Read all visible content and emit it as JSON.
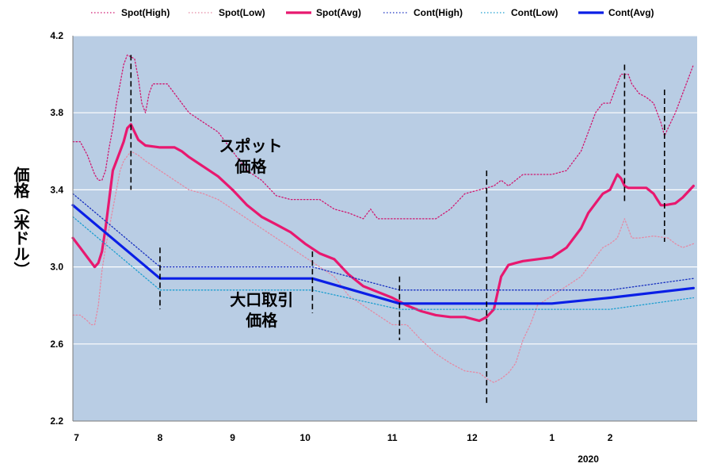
{
  "chart_data": {
    "type": "line",
    "title": "",
    "ylabel": "価格（米ドル）",
    "ylim": [
      2.2,
      4.2
    ],
    "yticks": [
      "2.2",
      "2.6",
      "3.0",
      "3.4",
      "3.8",
      "4.2"
    ],
    "yticks_values": [
      2.2,
      2.6,
      3.0,
      3.4,
      3.8,
      4.2
    ],
    "xlim": [
      0,
      8.6
    ],
    "x_tick_labels": [
      {
        "label": "7",
        "x": 0.05
      },
      {
        "label": "8",
        "x": 1.2
      },
      {
        "label": "9",
        "x": 2.2
      },
      {
        "label": "10",
        "x": 3.2
      },
      {
        "label": "11",
        "x": 4.4
      },
      {
        "label": "12",
        "x": 5.5
      },
      {
        "label": "1",
        "x": 6.6
      },
      {
        "label": "2",
        "x": 7.4
      }
    ],
    "year_label": {
      "text": "2020",
      "x": 7.1
    },
    "legend_position": "top",
    "background_color": "#b9cde4",
    "grid": {
      "horizontal": true,
      "vertical": false
    },
    "annotations": [
      {
        "text_lines": [
          "スポット",
          "価格"
        ],
        "x": 2.45,
        "y": 3.6
      },
      {
        "text_lines": [
          "大口取引",
          "価格"
        ],
        "x": 2.6,
        "y": 2.8
      }
    ],
    "vertical_markers": [
      {
        "x": 0.8,
        "y_top": 4.1,
        "y_bottom": 3.4
      },
      {
        "x": 1.2,
        "y_top": 3.1,
        "y_bottom": 2.78
      },
      {
        "x": 3.3,
        "y_top": 3.08,
        "y_bottom": 2.76
      },
      {
        "x": 4.5,
        "y_top": 2.95,
        "y_bottom": 2.62
      },
      {
        "x": 5.7,
        "y_top": 3.5,
        "y_bottom": 2.28
      },
      {
        "x": 7.6,
        "y_top": 4.05,
        "y_bottom": 3.34
      },
      {
        "x": 8.15,
        "y_top": 3.92,
        "y_bottom": 3.13
      }
    ],
    "series": [
      {
        "name": "Spot(High)",
        "color": "#d01870",
        "dash": "1.5,2.5",
        "width": 1.3,
        "x": [
          0,
          0.1,
          0.2,
          0.3,
          0.35,
          0.4,
          0.45,
          0.5,
          0.55,
          0.6,
          0.65,
          0.7,
          0.75,
          0.8,
          0.85,
          0.9,
          0.95,
          1.0,
          1.05,
          1.1,
          1.2,
          1.3,
          1.4,
          1.5,
          1.6,
          1.8,
          2.0,
          2.2,
          2.4,
          2.6,
          2.8,
          3.0,
          3.2,
          3.4,
          3.6,
          3.8,
          4.0,
          4.1,
          4.2,
          4.4,
          4.6,
          4.8,
          5.0,
          5.2,
          5.4,
          5.6,
          5.8,
          5.9,
          6.0,
          6.2,
          6.4,
          6.6,
          6.8,
          6.9,
          7.0,
          7.1,
          7.2,
          7.3,
          7.4,
          7.5,
          7.55,
          7.6,
          7.65,
          7.7,
          7.8,
          7.9,
          8.0,
          8.05,
          8.1,
          8.15,
          8.2,
          8.3,
          8.4,
          8.55
        ],
        "y": [
          3.65,
          3.65,
          3.58,
          3.48,
          3.45,
          3.45,
          3.5,
          3.62,
          3.72,
          3.85,
          3.95,
          4.05,
          4.1,
          4.09,
          4.08,
          3.98,
          3.85,
          3.8,
          3.9,
          3.95,
          3.95,
          3.95,
          3.9,
          3.85,
          3.8,
          3.75,
          3.7,
          3.6,
          3.5,
          3.45,
          3.37,
          3.35,
          3.35,
          3.35,
          3.3,
          3.28,
          3.25,
          3.3,
          3.25,
          3.25,
          3.25,
          3.25,
          3.25,
          3.3,
          3.38,
          3.4,
          3.42,
          3.45,
          3.42,
          3.48,
          3.48,
          3.48,
          3.5,
          3.55,
          3.6,
          3.7,
          3.8,
          3.85,
          3.85,
          3.95,
          4.0,
          4.0,
          4.0,
          3.95,
          3.9,
          3.88,
          3.85,
          3.8,
          3.75,
          3.68,
          3.72,
          3.8,
          3.9,
          4.05
        ]
      },
      {
        "name": "Spot(Low)",
        "color": "#e58aa4",
        "dash": "1.5,2.5",
        "width": 1.3,
        "x": [
          0,
          0.1,
          0.2,
          0.25,
          0.3,
          0.35,
          0.4,
          0.45,
          0.5,
          0.55,
          0.6,
          0.65,
          0.7,
          0.8,
          0.9,
          1.0,
          1.2,
          1.4,
          1.6,
          1.8,
          2.0,
          2.2,
          2.4,
          2.6,
          2.8,
          3.0,
          3.2,
          3.4,
          3.6,
          3.8,
          4.0,
          4.2,
          4.4,
          4.6,
          4.8,
          5.0,
          5.2,
          5.3,
          5.4,
          5.6,
          5.7,
          5.8,
          5.9,
          6.0,
          6.1,
          6.2,
          6.3,
          6.4,
          6.6,
          6.8,
          7.0,
          7.1,
          7.2,
          7.3,
          7.4,
          7.5,
          7.6,
          7.7,
          7.8,
          8.0,
          8.2,
          8.3,
          8.4,
          8.55
        ],
        "y": [
          2.75,
          2.75,
          2.72,
          2.7,
          2.7,
          2.8,
          2.98,
          3.1,
          3.2,
          3.3,
          3.4,
          3.5,
          3.55,
          3.6,
          3.58,
          3.55,
          3.5,
          3.45,
          3.4,
          3.38,
          3.35,
          3.3,
          3.25,
          3.2,
          3.15,
          3.1,
          3.05,
          3.0,
          2.95,
          2.85,
          2.8,
          2.75,
          2.7,
          2.7,
          2.62,
          2.55,
          2.5,
          2.48,
          2.46,
          2.45,
          2.42,
          2.4,
          2.42,
          2.45,
          2.5,
          2.62,
          2.7,
          2.8,
          2.85,
          2.9,
          2.95,
          3.0,
          3.05,
          3.1,
          3.12,
          3.15,
          3.25,
          3.15,
          3.15,
          3.16,
          3.15,
          3.12,
          3.1,
          3.12
        ]
      },
      {
        "name": "Spot(Avg)",
        "color": "#e8186f",
        "dash": "",
        "width": 3.2,
        "x": [
          0,
          0.1,
          0.2,
          0.3,
          0.35,
          0.4,
          0.45,
          0.5,
          0.55,
          0.6,
          0.65,
          0.7,
          0.75,
          0.8,
          0.85,
          0.9,
          1.0,
          1.2,
          1.4,
          1.5,
          1.6,
          1.8,
          2.0,
          2.2,
          2.4,
          2.6,
          2.8,
          3.0,
          3.2,
          3.4,
          3.6,
          3.8,
          4.0,
          4.2,
          4.4,
          4.6,
          4.8,
          5.0,
          5.2,
          5.4,
          5.6,
          5.7,
          5.8,
          5.9,
          6.0,
          6.1,
          6.2,
          6.4,
          6.6,
          6.8,
          7.0,
          7.1,
          7.2,
          7.3,
          7.4,
          7.5,
          7.55,
          7.6,
          7.65,
          7.8,
          7.9,
          8.0,
          8.05,
          8.1,
          8.15,
          8.3,
          8.4,
          8.55
        ],
        "y": [
          3.15,
          3.1,
          3.05,
          3.0,
          3.02,
          3.08,
          3.2,
          3.35,
          3.5,
          3.55,
          3.6,
          3.65,
          3.72,
          3.74,
          3.7,
          3.66,
          3.63,
          3.62,
          3.62,
          3.6,
          3.57,
          3.52,
          3.47,
          3.4,
          3.32,
          3.26,
          3.22,
          3.18,
          3.12,
          3.07,
          3.04,
          2.96,
          2.9,
          2.87,
          2.84,
          2.8,
          2.77,
          2.75,
          2.74,
          2.74,
          2.72,
          2.74,
          2.78,
          2.95,
          3.01,
          3.02,
          3.03,
          3.04,
          3.05,
          3.1,
          3.2,
          3.28,
          3.33,
          3.38,
          3.4,
          3.48,
          3.46,
          3.42,
          3.41,
          3.41,
          3.41,
          3.38,
          3.35,
          3.32,
          3.32,
          3.33,
          3.36,
          3.42
        ]
      },
      {
        "name": "Cont(High)",
        "color": "#1830c0",
        "dash": "1.5,2.5",
        "width": 1.3,
        "x": [
          0,
          1.2,
          3.3,
          4.5,
          5.5,
          6.6,
          7.4,
          8.55
        ],
        "y": [
          3.38,
          3.0,
          3.0,
          2.88,
          2.88,
          2.88,
          2.88,
          2.94
        ]
      },
      {
        "name": "Cont(Low)",
        "color": "#1e9fd0",
        "dash": "1.5,2.5",
        "width": 1.3,
        "x": [
          0,
          1.2,
          3.3,
          4.5,
          5.5,
          6.6,
          7.4,
          8.55
        ],
        "y": [
          3.26,
          2.88,
          2.88,
          2.78,
          2.78,
          2.78,
          2.78,
          2.84
        ]
      },
      {
        "name": "Cont(Avg)",
        "color": "#0a1fe6",
        "dash": "",
        "width": 3.2,
        "x": [
          0,
          1.2,
          3.3,
          4.5,
          5.5,
          6.6,
          7.4,
          8.55
        ],
        "y": [
          3.32,
          2.94,
          2.94,
          2.81,
          2.81,
          2.81,
          2.84,
          2.89
        ]
      }
    ]
  }
}
